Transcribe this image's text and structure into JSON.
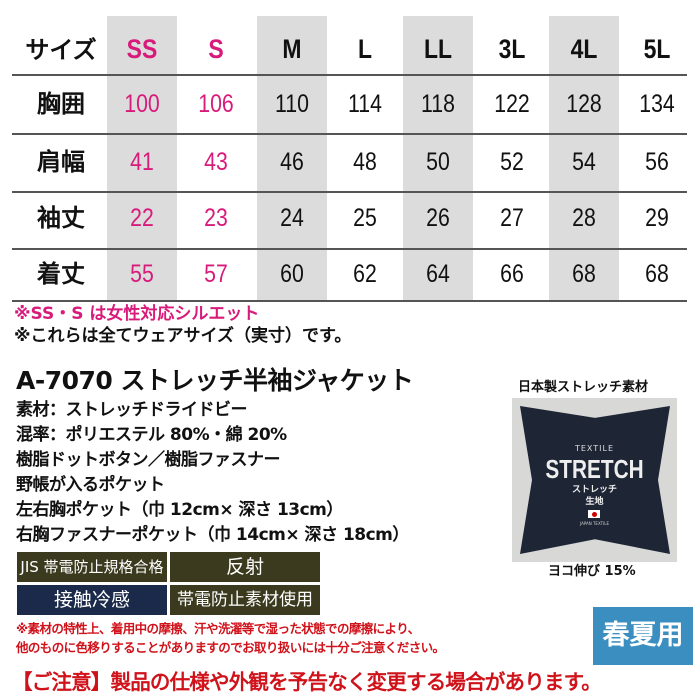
{
  "table": {
    "header_label": "サイズ",
    "sizes": [
      "SS",
      "S",
      "M",
      "L",
      "LL",
      "3L",
      "4L",
      "5L"
    ],
    "rows": [
      {
        "label": "胸囲",
        "values": [
          "100",
          "106",
          "110",
          "114",
          "118",
          "122",
          "128",
          "134"
        ]
      },
      {
        "label": "肩幅",
        "values": [
          "41",
          "43",
          "46",
          "48",
          "50",
          "52",
          "54",
          "56"
        ]
      },
      {
        "label": "袖丈",
        "values": [
          "22",
          "23",
          "24",
          "25",
          "26",
          "27",
          "28",
          "29"
        ]
      },
      {
        "label": "着丈",
        "values": [
          "55",
          "57",
          "60",
          "62",
          "64",
          "66",
          "68",
          "68"
        ]
      }
    ]
  },
  "notes_top": [
    "※SS・S は女性対応シルエット",
    "※これらは全てウェアサイズ（実寸）です。"
  ],
  "product": {
    "title": "A-7070 ストレッチ半袖ジャケット",
    "specs": [
      "素材：ストレッチドライドビー",
      "混率：ポリエステル 80%・綿 20%",
      "樹脂ドットボタン／樹脂ファスナー",
      "野帳が入るポケット",
      "左右胸ポケット（巾 12cm× 深さ 13cm）",
      "右胸ファスナーポケット（巾 14cm× 深さ 18cm）"
    ]
  },
  "badges": [
    {
      "label": "JIS 帯電防止規格合格",
      "color": "#3b3a1e"
    },
    {
      "label": "反射",
      "color": "#3b3a1e"
    },
    {
      "label": "接触冷感",
      "color": "#1b2a4a"
    },
    {
      "label": "帯電防止素材使用",
      "color": "#3b3a1e"
    }
  ],
  "fabric": {
    "caption_top": "日本製ストレッチ素材",
    "caption_bottom": "ヨコ伸び 15%",
    "logo_small": "TEXTILE",
    "logo_big": "STRETCH",
    "logo_jp1": "ストレッチ",
    "logo_jp2": "生地",
    "logo_foot": "JAPAN TEXTILE"
  },
  "care_notes": [
    "※素材の特性上、着用中の摩擦、汗や洗濯等で湿った状態での摩擦により、",
    "他のものに色移りすることがありますのでお取り扱いには十分ご注意ください。"
  ],
  "season": {
    "label": "春夏用",
    "color": "#3a8fc0"
  },
  "caution": "【ご注意】製品の仕様や外観を予告なく変更する場合があります。",
  "colors": {
    "pink": "#d81b7a",
    "red": "#d0121b"
  }
}
